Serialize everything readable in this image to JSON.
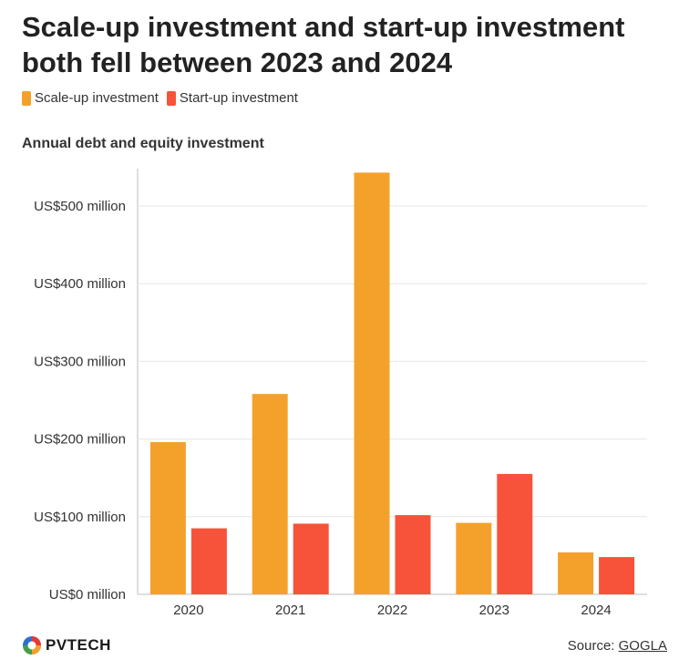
{
  "title": "Scale-up investment and start-up investment both fell between 2023 and 2024",
  "subtitle": "Annual debt and equity investment",
  "source": {
    "label": "Source:",
    "link": "GOGLA"
  },
  "logo": {
    "text": "PVTECH",
    "icon": "pvtech-logo-icon"
  },
  "colors": {
    "scaleup": "#f4a12c",
    "startup": "#f6533a"
  },
  "chart_data": {
    "type": "bar",
    "categories": [
      "2020",
      "2021",
      "2022",
      "2023",
      "2024"
    ],
    "series": [
      {
        "name": "Scale-up investment",
        "values": [
          196,
          258,
          543,
          92,
          54
        ]
      },
      {
        "name": "Start-up investment",
        "values": [
          85,
          91,
          102,
          155,
          48
        ]
      }
    ],
    "yticks": [
      0,
      100,
      200,
      300,
      400,
      500
    ],
    "ytick_labels": [
      "US$0 million",
      "US$100 million",
      "US$200 million",
      "US$300 million",
      "US$400 million",
      "US$500 million"
    ],
    "ylim": [
      0,
      550
    ],
    "title": "Scale-up investment and start-up investment both fell between 2023 and 2024",
    "xlabel": "",
    "ylabel": "Annual debt and equity investment"
  }
}
